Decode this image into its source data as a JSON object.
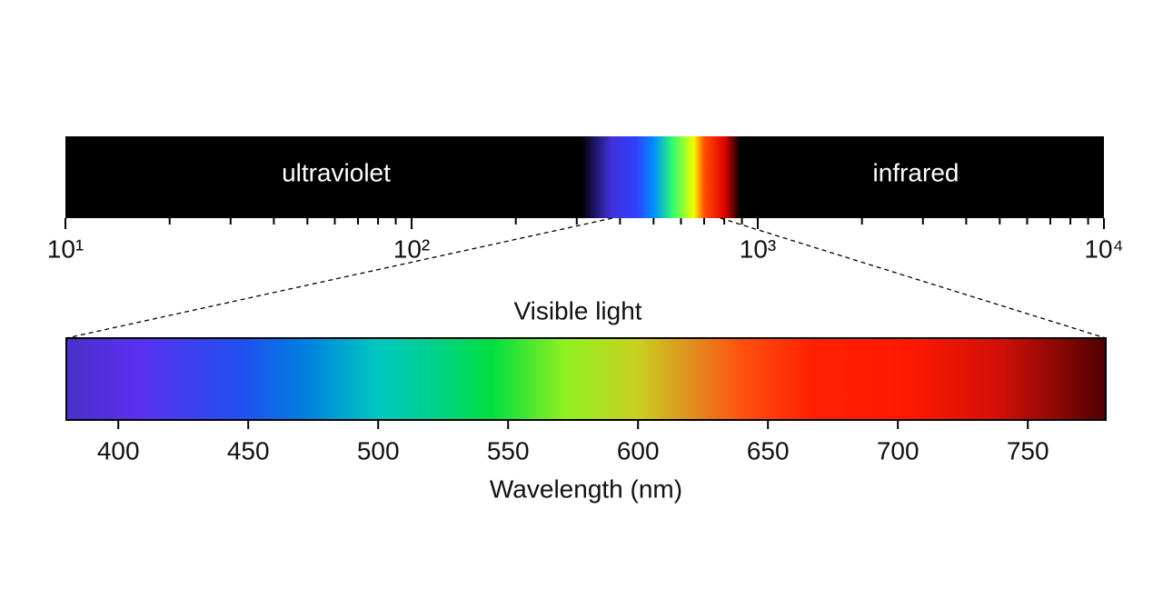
{
  "spectrum": {
    "regions": {
      "left": "ultraviolet",
      "right": "infrared"
    },
    "scale": "log",
    "xlim": [
      10,
      10000
    ],
    "xticks": [
      {
        "value": 10,
        "label": "10¹"
      },
      {
        "value": 100,
        "label": "10²"
      },
      {
        "value": 1000,
        "label": "10³"
      },
      {
        "value": 10000,
        "label": "10⁴"
      }
    ],
    "minor_xticks": [
      20,
      30,
      40,
      50,
      60,
      70,
      80,
      90,
      200,
      300,
      400,
      500,
      600,
      700,
      800,
      900,
      2000,
      3000,
      4000,
      5000,
      6000,
      7000,
      8000,
      9000
    ],
    "visible_range": [
      380,
      780
    ]
  },
  "visible": {
    "title": "Visible light",
    "xlabel": "Wavelength (nm)",
    "xlim": [
      380,
      780
    ],
    "xticks": [
      400,
      450,
      500,
      550,
      600,
      650,
      700,
      750
    ]
  }
}
